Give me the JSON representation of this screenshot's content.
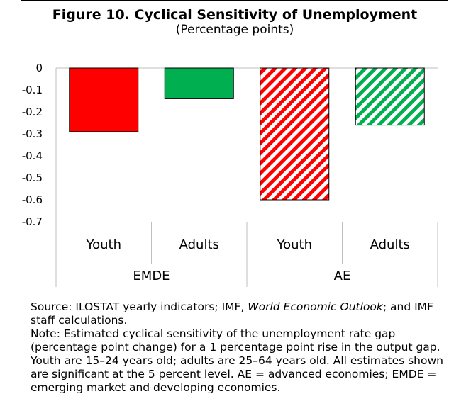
{
  "chart_data": {
    "type": "bar",
    "title": "Figure 10. Cyclical Sensitivity of Unemployment",
    "subtitle": "(Percentage points)",
    "groups": [
      "EMDE",
      "AE"
    ],
    "categories": [
      "Youth",
      "Adults",
      "Youth",
      "Adults"
    ],
    "values": [
      -0.29,
      -0.14,
      -0.6,
      -0.26
    ],
    "bar_styles": [
      "solid",
      "solid",
      "hatched",
      "hatched"
    ],
    "bar_colors": [
      "#ff0000",
      "#00b050",
      "#ff0000",
      "#00b050"
    ],
    "ylim": [
      -0.7,
      0
    ],
    "yticks": [
      0,
      -0.1,
      -0.2,
      -0.3,
      -0.4,
      -0.5,
      -0.6,
      -0.7
    ],
    "ytick_labels": [
      "0",
      "-0.1",
      "-0.2",
      "-0.3",
      "-0.4",
      "-0.5",
      "-0.6",
      "-0.7"
    ],
    "grid": false
  },
  "notes": {
    "source_prefix": "Source: ILOSTAT yearly indicators; IMF, ",
    "source_italic": "World Economic Outlook",
    "source_suffix": "; and IMF staff calculations.",
    "note": "Note: Estimated cyclical sensitivity of the unemployment rate gap (percentage point change) for a 1 percentage point rise in the output gap. Youth are 15–24 years old; adults are 25–64 years old. All estimates shown are significant at the 5 percent level. AE = advanced economies; EMDE = emerging market and developing economies."
  }
}
